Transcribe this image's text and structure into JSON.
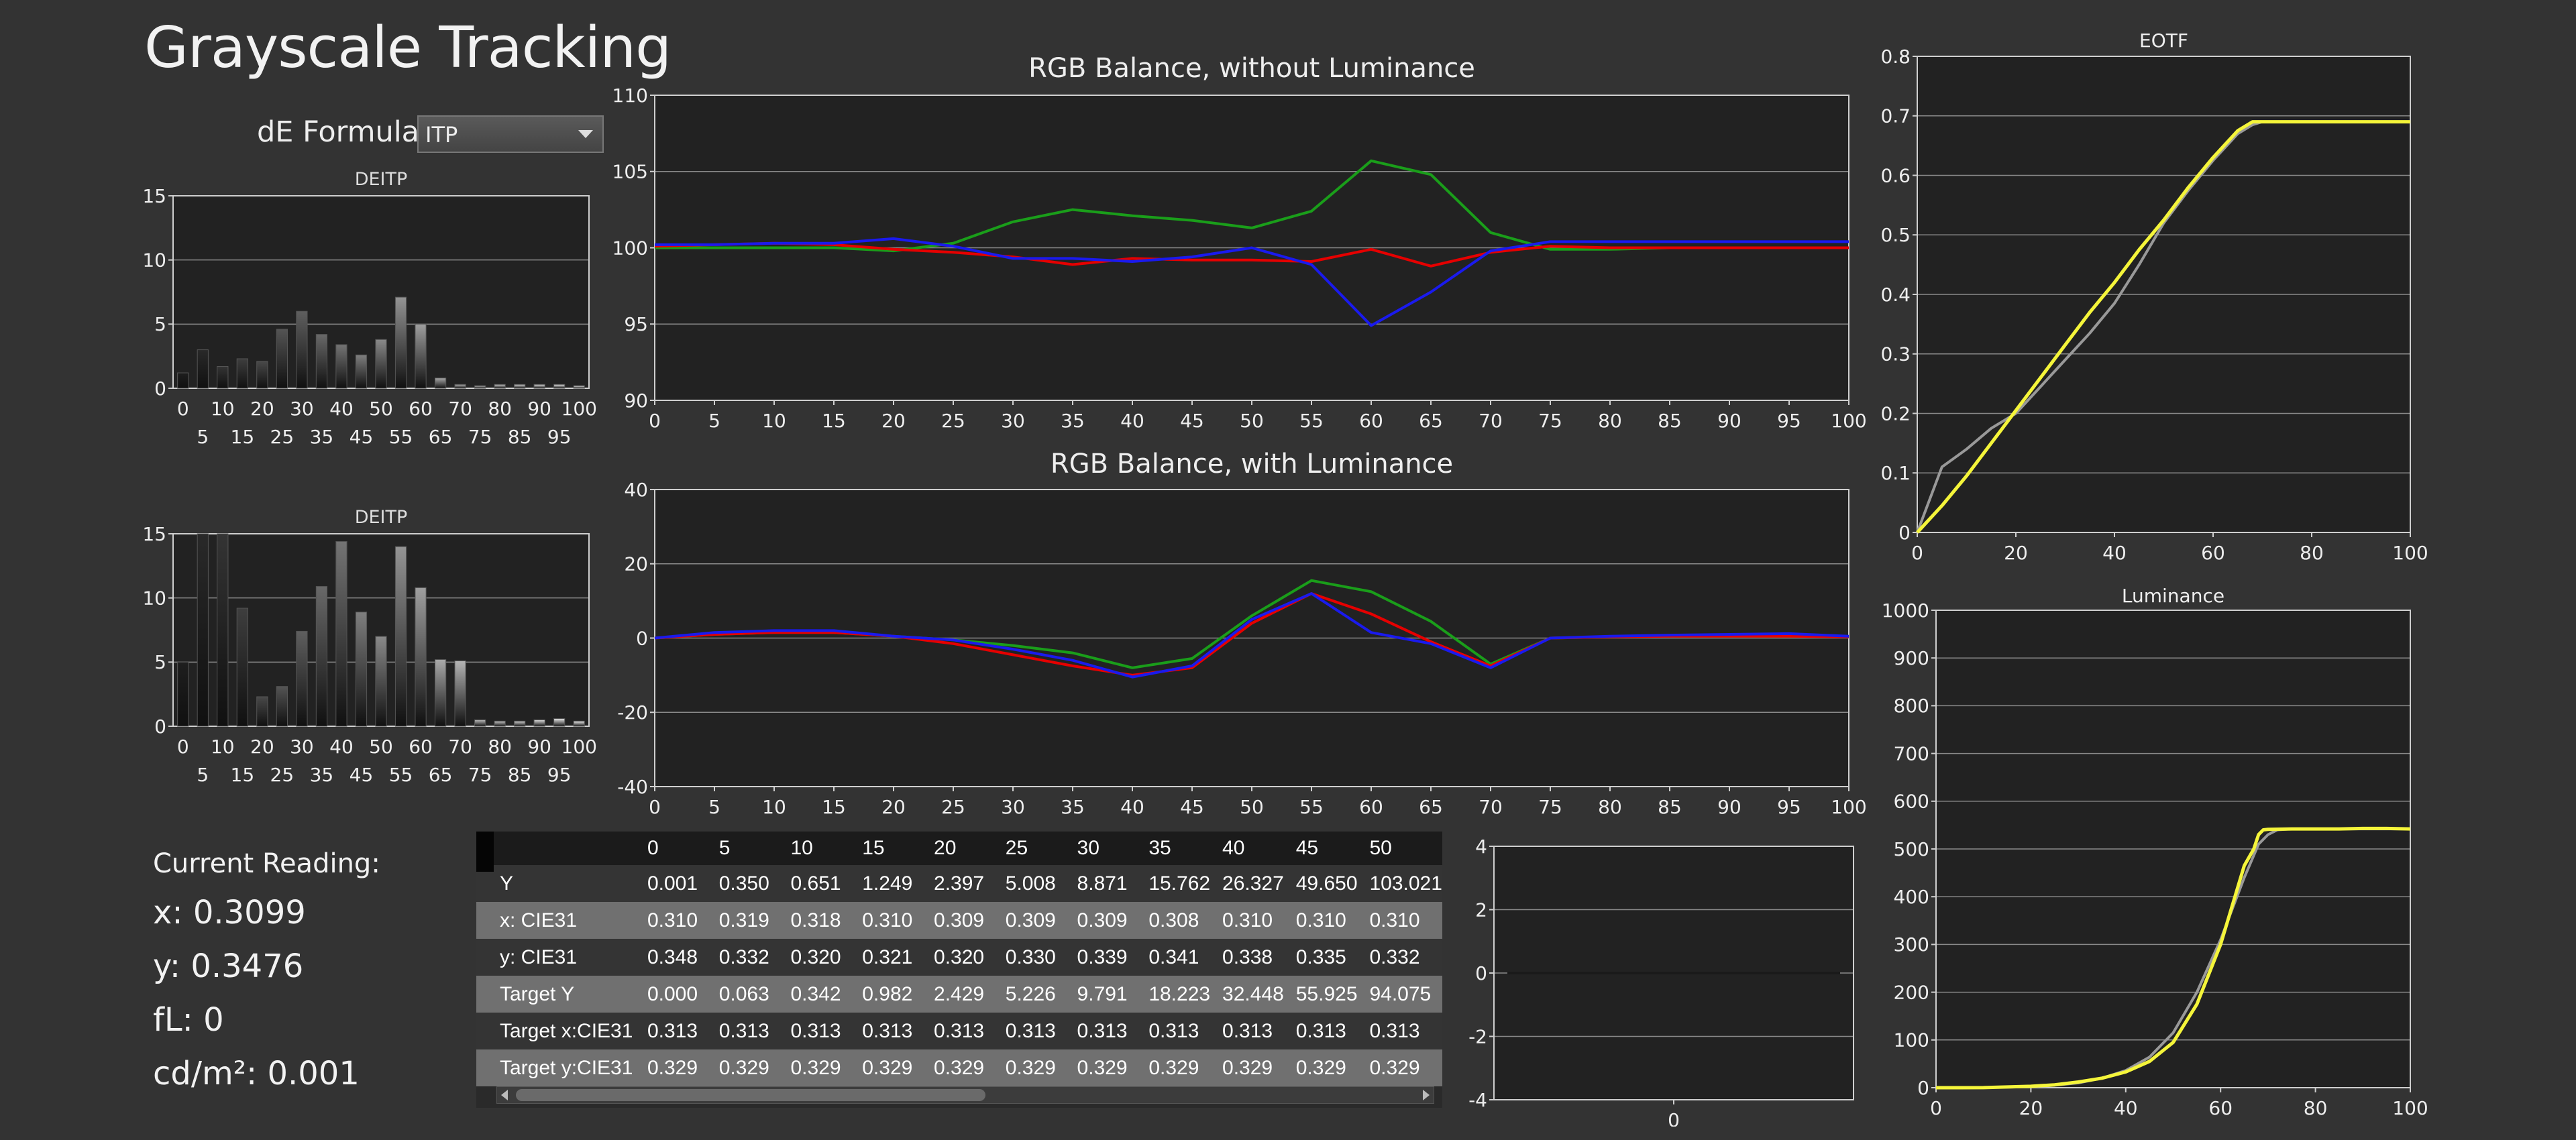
{
  "header": {
    "title": "Grayscale Tracking"
  },
  "formula": {
    "label": "dE Formula:",
    "selected": "ITP"
  },
  "reading": {
    "title": "Current Reading:",
    "x": "x: 0.3099",
    "y": "y: 0.3476",
    "fl": "fL: 0",
    "cdm2": "cd/m²: 0.001"
  },
  "colors": {
    "red": "#e60000",
    "green": "#1a9e1a",
    "blue": "#1a1aee",
    "yellow": "#f5f53a",
    "gray": "#999999"
  },
  "table": {
    "columns": [
      "0",
      "5",
      "10",
      "15",
      "20",
      "25",
      "30",
      "35",
      "40",
      "45",
      "50"
    ],
    "rows": [
      {
        "label": "Y",
        "values": [
          "0.001",
          "0.350",
          "0.651",
          "1.249",
          "2.397",
          "5.008",
          "8.871",
          "15.762",
          "26.327",
          "49.650",
          "103.021"
        ]
      },
      {
        "label": "x: CIE31",
        "values": [
          "0.310",
          "0.319",
          "0.318",
          "0.310",
          "0.309",
          "0.309",
          "0.309",
          "0.308",
          "0.310",
          "0.310",
          "0.310"
        ]
      },
      {
        "label": "y: CIE31",
        "values": [
          "0.348",
          "0.332",
          "0.320",
          "0.321",
          "0.320",
          "0.330",
          "0.339",
          "0.341",
          "0.338",
          "0.335",
          "0.332"
        ]
      },
      {
        "label": "Target Y",
        "values": [
          "0.000",
          "0.063",
          "0.342",
          "0.982",
          "2.429",
          "5.226",
          "9.791",
          "18.223",
          "32.448",
          "55.925",
          "94.075"
        ]
      },
      {
        "label": "Target x:CIE31",
        "values": [
          "0.313",
          "0.313",
          "0.313",
          "0.313",
          "0.313",
          "0.313",
          "0.313",
          "0.313",
          "0.313",
          "0.313",
          "0.313"
        ]
      },
      {
        "label": "Target y:CIE31",
        "values": [
          "0.329",
          "0.329",
          "0.329",
          "0.329",
          "0.329",
          "0.329",
          "0.329",
          "0.329",
          "0.329",
          "0.329",
          "0.329"
        ]
      }
    ]
  },
  "chart_data": [
    {
      "id": "deitp1",
      "type": "bar",
      "title": "DEITP",
      "ylim": [
        0,
        15
      ],
      "yticks": [
        0,
        5,
        10,
        15
      ],
      "categories": [
        0,
        5,
        10,
        15,
        20,
        25,
        30,
        35,
        40,
        45,
        50,
        55,
        60,
        65,
        70,
        75,
        80,
        85,
        90,
        95,
        100
      ],
      "xtick_row1": [
        "0",
        "10",
        "20",
        "30",
        "40",
        "50",
        "60",
        "70",
        "80",
        "90",
        "100"
      ],
      "xtick_row2": [
        "5",
        "15",
        "25",
        "35",
        "45",
        "55",
        "65",
        "75",
        "85",
        "95"
      ],
      "values": [
        1.2,
        3.0,
        1.7,
        2.3,
        2.1,
        4.6,
        6.0,
        4.2,
        3.4,
        2.6,
        3.8,
        7.1,
        5.0,
        0.8,
        0.3,
        0.2,
        0.3,
        0.3,
        0.3,
        0.3,
        0.2
      ],
      "grid": true
    },
    {
      "id": "deitp2",
      "type": "bar",
      "title": "DEITP",
      "ylim": [
        0,
        15
      ],
      "yticks": [
        0,
        5,
        10,
        15
      ],
      "categories": [
        0,
        5,
        10,
        15,
        20,
        25,
        30,
        35,
        40,
        45,
        50,
        55,
        60,
        65,
        70,
        75,
        80,
        85,
        90,
        95,
        100
      ],
      "xtick_row1": [
        "0",
        "10",
        "20",
        "30",
        "40",
        "50",
        "60",
        "70",
        "80",
        "90",
        "100"
      ],
      "xtick_row2": [
        "5",
        "15",
        "25",
        "35",
        "45",
        "55",
        "65",
        "75",
        "85",
        "95"
      ],
      "values": [
        5.0,
        15.0,
        15.0,
        9.2,
        2.3,
        3.1,
        7.4,
        10.9,
        14.4,
        8.9,
        7.0,
        14.0,
        10.8,
        5.2,
        5.1,
        0.5,
        0.4,
        0.4,
        0.5,
        0.6,
        0.4
      ],
      "grid": true
    },
    {
      "id": "rgb1",
      "type": "line",
      "title": "RGB Balance, without Luminance",
      "x": [
        0,
        5,
        10,
        15,
        20,
        25,
        30,
        35,
        40,
        45,
        50,
        55,
        60,
        65,
        70,
        75,
        80,
        85,
        90,
        95,
        100
      ],
      "xticks": [
        0,
        5,
        10,
        15,
        20,
        25,
        30,
        35,
        40,
        45,
        50,
        55,
        60,
        65,
        70,
        75,
        80,
        85,
        90,
        95,
        100
      ],
      "ylim": [
        90,
        110
      ],
      "yticks": [
        90,
        95,
        100,
        105,
        110
      ],
      "grid": true,
      "series": [
        {
          "color": "green",
          "values": [
            100.0,
            100.0,
            100.0,
            100.0,
            99.8,
            100.3,
            101.7,
            102.5,
            102.1,
            101.8,
            101.3,
            102.4,
            105.7,
            104.8,
            101.0,
            99.9,
            99.9,
            100.0,
            100.0,
            100.0,
            100.0
          ]
        },
        {
          "color": "red",
          "values": [
            100.1,
            100.2,
            100.3,
            100.2,
            99.9,
            99.7,
            99.4,
            98.9,
            99.3,
            99.2,
            99.2,
            99.1,
            99.9,
            98.8,
            99.7,
            100.1,
            100.0,
            100.0,
            100.0,
            100.0,
            100.0
          ]
        },
        {
          "color": "blue",
          "values": [
            100.2,
            100.2,
            100.3,
            100.3,
            100.6,
            100.1,
            99.3,
            99.3,
            99.1,
            99.4,
            100.0,
            98.9,
            94.9,
            97.1,
            99.8,
            100.4,
            100.4,
            100.4,
            100.4,
            100.4,
            100.4
          ]
        }
      ]
    },
    {
      "id": "rgb2",
      "type": "line",
      "title": "RGB Balance, with Luminance",
      "x": [
        0,
        5,
        10,
        15,
        20,
        25,
        30,
        35,
        40,
        45,
        50,
        55,
        60,
        65,
        70,
        75,
        80,
        85,
        90,
        95,
        100
      ],
      "xticks": [
        0,
        5,
        10,
        15,
        20,
        25,
        30,
        35,
        40,
        45,
        50,
        55,
        60,
        65,
        70,
        75,
        80,
        85,
        90,
        95,
        100
      ],
      "ylim": [
        -40,
        40
      ],
      "yticks": [
        -40,
        -20,
        0,
        20,
        40
      ],
      "grid": true,
      "series": [
        {
          "color": "green",
          "values": [
            0.0,
            1.0,
            1.5,
            1.5,
            0.5,
            -0.5,
            -2.0,
            -4.0,
            -8.0,
            -5.5,
            6.0,
            15.5,
            12.5,
            4.5,
            -7.0,
            0.0,
            0.3,
            0.5,
            0.5,
            0.5,
            0.3
          ]
        },
        {
          "color": "red",
          "values": [
            0.0,
            1.0,
            1.5,
            1.5,
            0.5,
            -1.5,
            -4.5,
            -7.5,
            -10.0,
            -8.0,
            4.0,
            12.0,
            6.5,
            -1.0,
            -7.5,
            0.0,
            0.3,
            0.5,
            0.5,
            0.5,
            0.3
          ]
        },
        {
          "color": "blue",
          "values": [
            0.0,
            1.5,
            2.0,
            2.0,
            0.5,
            -0.5,
            -3.0,
            -6.0,
            -10.5,
            -7.5,
            5.0,
            12.0,
            1.5,
            -1.5,
            -8.0,
            0.0,
            0.5,
            0.8,
            1.0,
            1.2,
            0.5
          ]
        }
      ]
    },
    {
      "id": "small",
      "type": "line",
      "ylim": [
        -4,
        4
      ],
      "yticks": [
        -4,
        -2,
        0,
        2,
        4
      ],
      "xticks": [
        0
      ],
      "grid": true,
      "series": [
        {
          "color": "gray",
          "values": [
            0,
            0
          ]
        }
      ]
    },
    {
      "id": "eotf",
      "type": "line",
      "title": "EOTF",
      "xlim": [
        0,
        100
      ],
      "ylim": [
        0,
        0.8
      ],
      "xticks": [
        0,
        20,
        40,
        60,
        80,
        100
      ],
      "yticks": [
        0,
        0.1,
        0.2,
        0.3,
        0.4,
        0.5,
        0.6,
        0.7,
        0.8
      ],
      "grid": true,
      "series": [
        {
          "color": "gray",
          "x": [
            0,
            5,
            10,
            15,
            20,
            25,
            30,
            35,
            40,
            45,
            50,
            55,
            60,
            65,
            68,
            70,
            75,
            80,
            85,
            90,
            95,
            100
          ],
          "values": [
            0.0,
            0.11,
            0.14,
            0.175,
            0.2,
            0.245,
            0.29,
            0.335,
            0.385,
            0.45,
            0.52,
            0.575,
            0.625,
            0.67,
            0.685,
            0.69,
            0.69,
            0.69,
            0.69,
            0.69,
            0.69,
            0.69
          ]
        },
        {
          "color": "yellow",
          "x": [
            0,
            5,
            10,
            15,
            20,
            25,
            30,
            35,
            40,
            45,
            50,
            55,
            60,
            65,
            68,
            70,
            75,
            80,
            85,
            90,
            95,
            100
          ],
          "values": [
            0.0,
            0.045,
            0.095,
            0.15,
            0.205,
            0.26,
            0.315,
            0.37,
            0.42,
            0.475,
            0.525,
            0.58,
            0.63,
            0.675,
            0.69,
            0.69,
            0.69,
            0.69,
            0.69,
            0.69,
            0.69,
            0.69
          ]
        }
      ]
    },
    {
      "id": "lum",
      "type": "line",
      "title": "Luminance",
      "xlim": [
        0,
        100
      ],
      "ylim": [
        0,
        1000
      ],
      "xticks": [
        0,
        20,
        40,
        60,
        80,
        100
      ],
      "yticks": [
        0,
        100,
        200,
        300,
        400,
        500,
        600,
        700,
        800,
        900,
        1000
      ],
      "grid": true,
      "series": [
        {
          "color": "gray",
          "x": [
            0,
            10,
            20,
            25,
            30,
            35,
            40,
            45,
            50,
            55,
            60,
            65,
            68,
            70,
            72,
            75,
            80,
            85,
            90,
            95,
            100
          ],
          "values": [
            0,
            0.3,
            2,
            5,
            10,
            20,
            36,
            64,
            115,
            200,
            310,
            440,
            510,
            530,
            540,
            542,
            542,
            542,
            542,
            542,
            542
          ]
        },
        {
          "color": "yellow",
          "x": [
            0,
            10,
            20,
            25,
            30,
            35,
            40,
            45,
            50,
            55,
            60,
            65,
            67,
            68,
            69,
            70,
            75,
            80,
            85,
            90,
            95,
            100
          ],
          "values": [
            0,
            0.1,
            3,
            6,
            12,
            20,
            33,
            55,
            95,
            175,
            300,
            465,
            500,
            530,
            540,
            541,
            542,
            542,
            542,
            543,
            543,
            542
          ]
        }
      ]
    }
  ]
}
